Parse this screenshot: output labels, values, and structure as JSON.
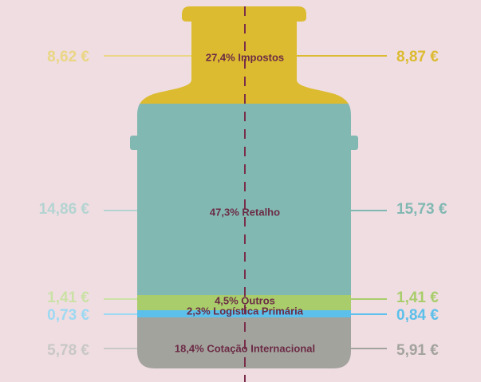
{
  "segments": [
    {
      "label": "27,4% Impostos",
      "left": "8,62 €",
      "right": "8,87 €",
      "color": "#dcbb30"
    },
    {
      "label": "47,3% Retalho",
      "left": "14,86 €",
      "right": "15,73 €",
      "color": "#82b8b2"
    },
    {
      "label": "4,5% Outros",
      "left": "1,41 €",
      "right": "1,41 €",
      "color": "#a9cd6b"
    },
    {
      "label": "2,3% Logística Primária",
      "left": "0,73 €",
      "right": "0,84 €",
      "color": "#5cc0ea"
    },
    {
      "label": "18,4% Cotação Internacional",
      "left": "5,78 €",
      "right": "5,91 €",
      "color": "#a3a39e"
    }
  ]
}
